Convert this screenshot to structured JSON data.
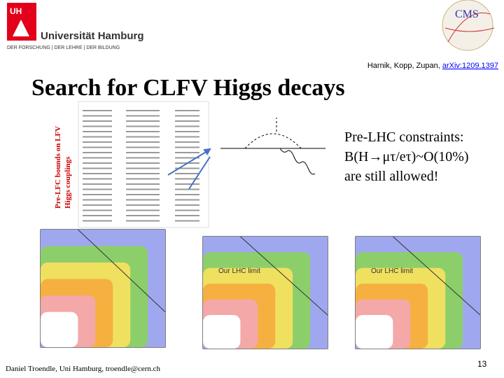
{
  "header": {
    "university": "Universität Hamburg",
    "motto": "DER FORSCHUNG | DER LEHRE | DER BILDUNG",
    "logo_text": "CMS"
  },
  "citation": {
    "authors": "Harnik, Kopp, Zupan, ",
    "link": "arXiv:1209.1397"
  },
  "title": "Search for CLFV Higgs decays",
  "side_label": [
    "Pre-LFC bounds on LFV",
    "Higgs couplings"
  ],
  "callout": [
    "Pre-LHC constraints:",
    "B(H→μτ/eτ)~O(10%)",
    "are still allowed!"
  ],
  "plots": [
    {
      "label": null
    },
    {
      "label": "Our LHC limit"
    },
    {
      "label": "Our LHC limit"
    }
  ],
  "footer": "Daniel Troendle, Uni Hamburg, troendle@cern.ch",
  "page_number": "13"
}
